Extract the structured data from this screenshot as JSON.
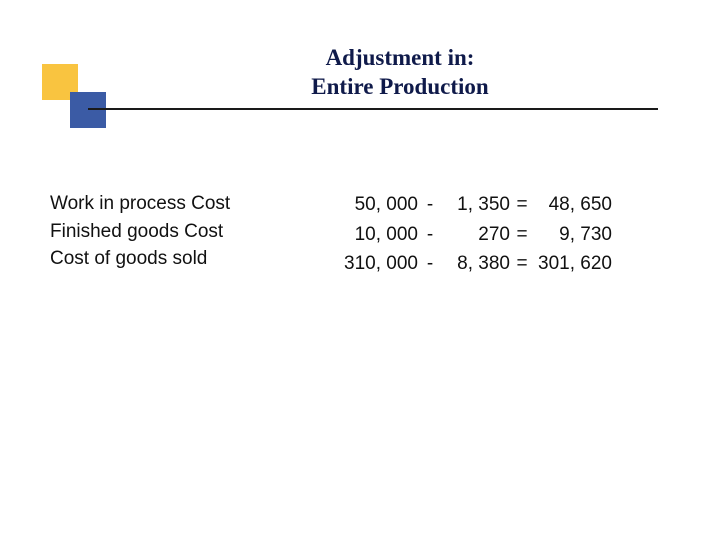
{
  "colors": {
    "background": "#ffffff",
    "title_text": "#0f1a4a",
    "body_text": "#111111",
    "decor_yellow": "#f9c440",
    "decor_blue": "#3b5ba5",
    "rule": "#1a1a1a"
  },
  "typography": {
    "title_font": "Georgia",
    "title_fontsize_pt": 17,
    "title_weight": "bold",
    "body_font": "Verdana",
    "body_fontsize_pt": 14
  },
  "title": {
    "line1": "Adjustment in:",
    "line2": "Entire Production"
  },
  "labels": [
    "Work in process Cost",
    "Finished goods Cost",
    "Cost of goods sold"
  ],
  "calculations": [
    {
      "a": "50, 000",
      "op1": "-",
      "b": "1, 350",
      "op2": "=",
      "r": "48, 650"
    },
    {
      "a": "10, 000",
      "op1": "-",
      "b": "270",
      "op2": "=",
      "r": "9, 730"
    },
    {
      "a": "310, 000",
      "op1": "-",
      "b": "8, 380",
      "op2": "=",
      "r": "301, 620"
    }
  ]
}
